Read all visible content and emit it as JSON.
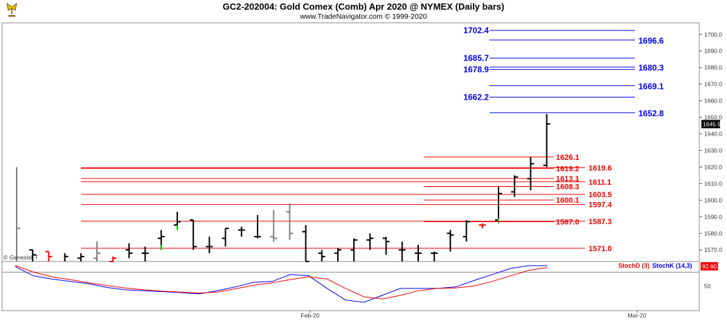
{
  "header": {
    "title": "GC2-202004:  Gold Comex (Comb) Apr 2020 @ NYMEX  (Daily bars)",
    "subtitle": "www.TradeNavigator.com © 1999-2020"
  },
  "colors": {
    "bar": "#000000",
    "bar_gray": "#808080",
    "up_level": "#0000ee",
    "down_level": "#ee0000",
    "stoch_d": "#ee0000",
    "stoch_k": "#0000ee",
    "green_mark": "#00cc00"
  },
  "icons": {
    "logo": "trading-logo-icon"
  },
  "chart_data": {
    "type": "ohlc",
    "price_axis": {
      "ylim": [
        1563,
        1707
      ],
      "ticks": [
        "1700.0",
        "1690.0",
        "1680.0",
        "1670.0",
        "1660.0",
        "1650.0",
        "1640.0",
        "1630.0",
        "1620.0",
        "1610.0",
        "1600.0",
        "1590.0",
        "1580.0",
        "1570.0"
      ],
      "last_price": "1645.9"
    },
    "x_axis": {
      "labels": [
        "Feb-20",
        "Mar-20"
      ]
    },
    "watermark": "© GenesisFT",
    "bars": [
      {
        "o": null,
        "h": 1620,
        "l": 1563,
        "c": 1583,
        "color": "gray"
      },
      {
        "o": 1570,
        "h": 1570,
        "l": 1563,
        "c": 1567,
        "color": "black"
      },
      {
        "o": 1569,
        "h": 1569,
        "l": 1563,
        "c": 1566,
        "color": "red"
      },
      {
        "o": null,
        "h": 1568,
        "l": 1563,
        "c": 1566,
        "color": "black"
      },
      {
        "o": 1565,
        "h": 1568,
        "l": 1563,
        "c": 1566,
        "color": "black"
      },
      {
        "o": 1565,
        "h": 1575,
        "l": 1563,
        "c": 1568,
        "color": "gray"
      },
      {
        "o": 1563,
        "h": 1566,
        "l": 1563,
        "c": 1565,
        "color": "red"
      },
      {
        "o": 1570,
        "h": 1574,
        "l": 1565,
        "c": 1568,
        "color": "black"
      },
      {
        "o": 1568,
        "h": 1572,
        "l": 1563,
        "c": 1568,
        "color": "black"
      },
      {
        "o": 1577,
        "h": 1582,
        "l": 1570,
        "c": 1578,
        "color": "black",
        "marker": "green"
      },
      {
        "o": 1585,
        "h": 1593,
        "l": 1582,
        "c": 1587,
        "color": "black",
        "marker": "green"
      },
      {
        "o": 1588,
        "h": 1588,
        "l": 1570,
        "c": 1572,
        "color": "black"
      },
      {
        "o": 1572,
        "h": 1578,
        "l": 1568,
        "c": 1572,
        "color": "black"
      },
      {
        "o": 1577,
        "h": 1583,
        "l": 1572,
        "c": 1583,
        "color": "black"
      },
      {
        "o": 1582,
        "h": 1584,
        "l": 1578,
        "c": 1582,
        "color": "black"
      },
      {
        "o": 1578,
        "h": 1591,
        "l": 1577,
        "c": 1578,
        "color": "black"
      },
      {
        "o": 1578,
        "h": 1594,
        "l": 1575,
        "c": 1577,
        "color": "gray"
      },
      {
        "o": 1593,
        "h": 1598,
        "l": 1576,
        "c": 1580,
        "color": "gray"
      },
      {
        "o": 1581,
        "h": 1585,
        "l": 1563,
        "c": 1563,
        "color": "black"
      },
      {
        "o": 1568,
        "h": 1570,
        "l": 1563,
        "c": 1566,
        "color": "black"
      },
      {
        "o": 1568,
        "h": 1571,
        "l": 1563,
        "c": 1570,
        "color": "black"
      },
      {
        "o": 1570,
        "h": 1577,
        "l": 1563,
        "c": 1576,
        "color": "black"
      },
      {
        "o": 1576,
        "h": 1580,
        "l": 1570,
        "c": 1577,
        "color": "black"
      },
      {
        "o": 1577,
        "h": 1578,
        "l": 1567,
        "c": 1575,
        "color": "black"
      },
      {
        "o": 1570,
        "h": 1575,
        "l": 1563,
        "c": 1570,
        "color": "black"
      },
      {
        "o": 1568,
        "h": 1573,
        "l": 1563,
        "c": 1568,
        "color": "black"
      },
      {
        "o": 1568,
        "h": 1569,
        "l": 1563,
        "c": 1568,
        "color": "black"
      },
      {
        "o": 1580,
        "h": 1582,
        "l": 1569,
        "c": 1579,
        "color": "black"
      },
      {
        "o": 1578,
        "h": 1588,
        "l": 1575,
        "c": 1587,
        "color": "black"
      },
      {
        "o": 1585,
        "h": 1586,
        "l": 1583,
        "c": 1585,
        "color": "red"
      },
      {
        "o": 1588,
        "h": 1608,
        "l": 1586,
        "c": 1604,
        "color": "black",
        "marker": "green"
      },
      {
        "o": 1605,
        "h": 1615,
        "l": 1602,
        "c": 1614,
        "color": "black"
      },
      {
        "o": 1613,
        "h": 1626,
        "l": 1606,
        "c": 1622,
        "color": "black"
      },
      {
        "o": 1621,
        "h": 1652,
        "l": 1620,
        "c": 1646,
        "color": "black"
      }
    ],
    "up_levels": [
      {
        "label": "1702.4",
        "value": 1702.4,
        "side": "left"
      },
      {
        "label": "1696.6",
        "value": 1696.6,
        "side": "right"
      },
      {
        "label": "1685.7",
        "value": 1685.7,
        "side": "left"
      },
      {
        "label": "1680.3",
        "value": 1680.3,
        "side": "right"
      },
      {
        "label": "1678.9",
        "value": 1678.9,
        "side": "left"
      },
      {
        "label": "1669.1",
        "value": 1669.1,
        "side": "right"
      },
      {
        "label": "1662.2",
        "value": 1662.2,
        "side": "left"
      },
      {
        "label": "1652.8",
        "value": 1652.8,
        "side": "right"
      }
    ],
    "down_levels": [
      {
        "label": "1626.1",
        "value": 1626.1,
        "side": "left"
      },
      {
        "label": "1619.2",
        "value": 1619.2,
        "side": "left"
      },
      {
        "label": "1619.6",
        "value": 1619.6,
        "side": "right"
      },
      {
        "label": "1613.1",
        "value": 1613.1,
        "side": "left"
      },
      {
        "label": "1611.1",
        "value": 1611.1,
        "side": "right"
      },
      {
        "label": "1608.3",
        "value": 1608.3,
        "side": "left"
      },
      {
        "label": "1603.5",
        "value": 1603.5,
        "side": "right"
      },
      {
        "label": "1600.1",
        "value": 1600.1,
        "side": "left"
      },
      {
        "label": "1597.4",
        "value": 1597.4,
        "side": "right"
      },
      {
        "label": "1587.0",
        "value": 1587.0,
        "side": "left"
      },
      {
        "label": "1587.3",
        "value": 1587.3,
        "side": "right"
      },
      {
        "label": "1571.0",
        "value": 1571.0,
        "side": "right"
      }
    ],
    "stochastic": {
      "legend": [
        "StochD (3)",
        "StochK (14,3)"
      ],
      "tick_label": "50",
      "last_value": "92.60",
      "ylim": [
        0,
        100
      ],
      "stoch_k": [
        92,
        72,
        65,
        60,
        55,
        47,
        42,
        40,
        38,
        36,
        33,
        40,
        48,
        58,
        60,
        75,
        72,
        45,
        20,
        15,
        30,
        45,
        45,
        45,
        48,
        62,
        75,
        88,
        94,
        94
      ],
      "stoch_d": [
        94,
        80,
        70,
        64,
        57,
        51,
        46,
        42,
        39,
        37,
        35,
        37,
        44,
        52,
        57,
        64,
        70,
        65,
        45,
        27,
        22,
        30,
        40,
        45,
        46,
        50,
        60,
        72,
        84,
        90
      ]
    }
  }
}
